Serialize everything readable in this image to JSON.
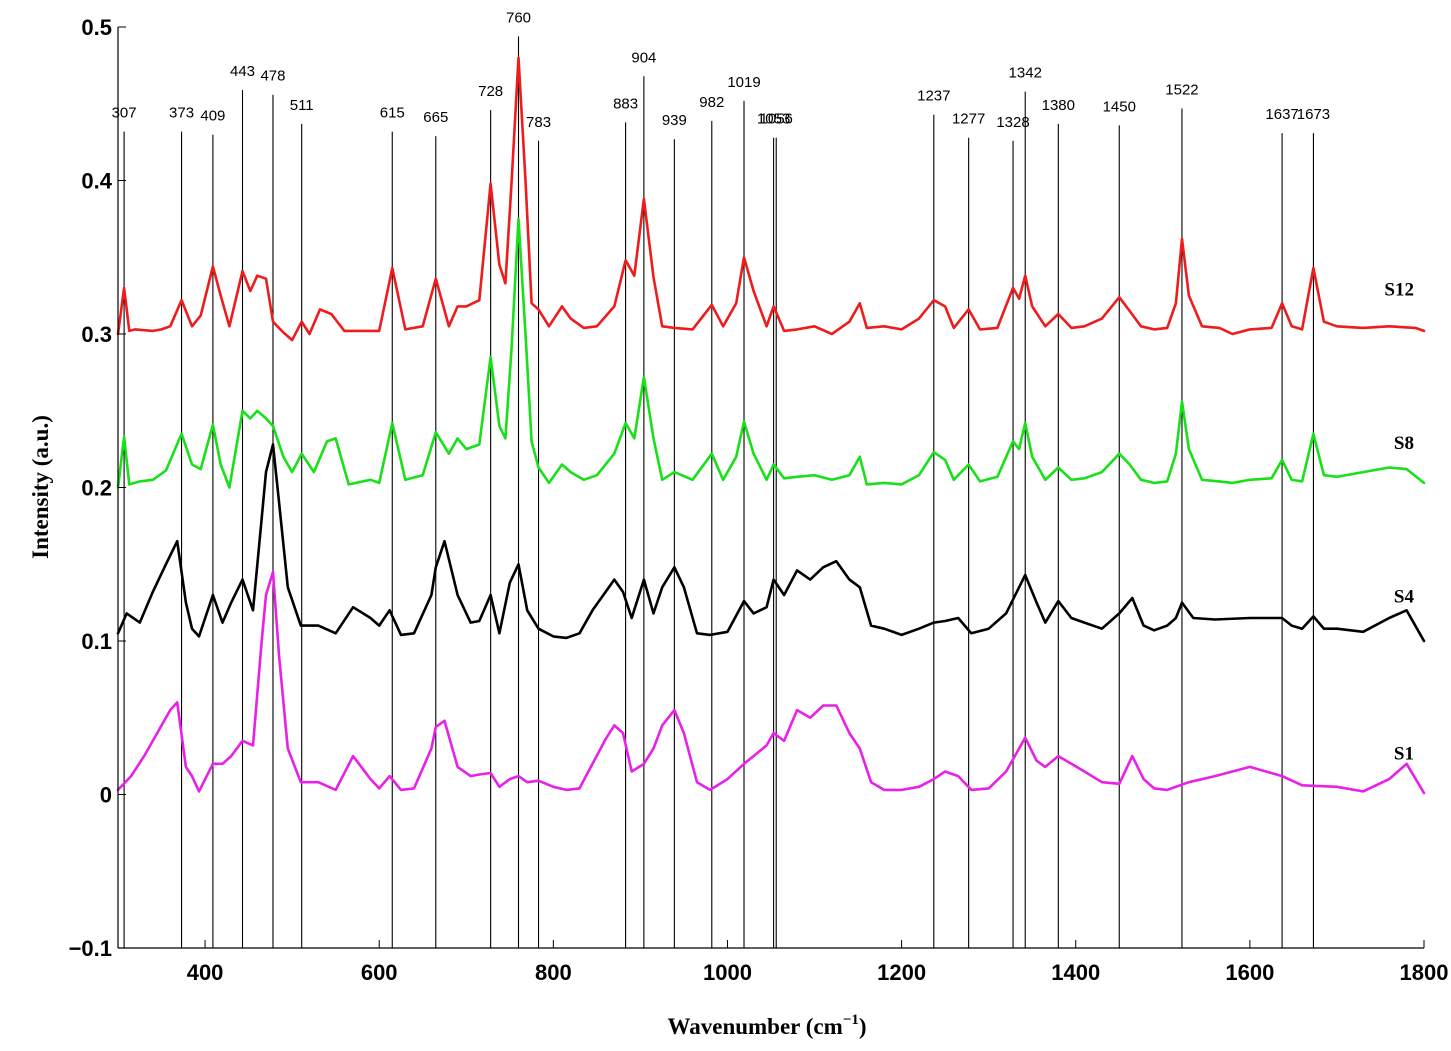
{
  "chart_data": {
    "type": "line",
    "title": "",
    "xlabel_main": "Wavenumber (cm",
    "xlabel_sup": "−1",
    "xlabel_close": ")",
    "ylabel": "Intensity (a.u.)",
    "xlim": [
      300,
      1800
    ],
    "ylim": [
      -0.1,
      0.5
    ],
    "x_ticks": [
      400,
      600,
      800,
      1000,
      1200,
      1400,
      1600,
      1800
    ],
    "x_tick_labels": [
      "400",
      "600",
      "800",
      "1000",
      "1200",
      "1400",
      "1600",
      "1800"
    ],
    "y_ticks": [
      -0.1,
      0,
      0.1,
      0.2,
      0.3,
      0.4,
      0.5
    ],
    "y_tick_labels": [
      "−0.1",
      "0",
      "0.1",
      "0.2",
      "0.3",
      "0.4",
      "0.5"
    ],
    "grid": false,
    "legend": "labels at right end of each series",
    "peak_markers": [
      {
        "x": 307,
        "label": "307",
        "label_y": 0.441
      },
      {
        "x": 373,
        "label": "373",
        "label_y": 0.441
      },
      {
        "x": 409,
        "label": "409",
        "label_y": 0.439
      },
      {
        "x": 443,
        "label": "443",
        "label_y": 0.468
      },
      {
        "x": 478,
        "label": "478",
        "label_y": 0.465
      },
      {
        "x": 511,
        "label": "511",
        "label_y": 0.446
      },
      {
        "x": 615,
        "label": "615",
        "label_y": 0.441
      },
      {
        "x": 665,
        "label": "665",
        "label_y": 0.438
      },
      {
        "x": 728,
        "label": "728",
        "label_y": 0.455
      },
      {
        "x": 760,
        "label": "760",
        "label_y": 0.503
      },
      {
        "x": 783,
        "label": "783",
        "label_y": 0.435
      },
      {
        "x": 883,
        "label": "883",
        "label_y": 0.447
      },
      {
        "x": 904,
        "label": "904",
        "label_y": 0.477
      },
      {
        "x": 939,
        "label": "939",
        "label_y": 0.436
      },
      {
        "x": 982,
        "label": "982",
        "label_y": 0.448
      },
      {
        "x": 1019,
        "label": "1019",
        "label_y": 0.461
      },
      {
        "x": 1053,
        "label": "1053",
        "label_y": 0.437
      },
      {
        "x": 1056,
        "label": "1056",
        "label_y": 0.437
      },
      {
        "x": 1237,
        "label": "1237",
        "label_y": 0.452
      },
      {
        "x": 1277,
        "label": "1277",
        "label_y": 0.437
      },
      {
        "x": 1328,
        "label": "1328",
        "label_y": 0.435
      },
      {
        "x": 1342,
        "label": "1342",
        "label_y": 0.467
      },
      {
        "x": 1380,
        "label": "1380",
        "label_y": 0.446
      },
      {
        "x": 1450,
        "label": "1450",
        "label_y": 0.445
      },
      {
        "x": 1522,
        "label": "1522",
        "label_y": 0.456
      },
      {
        "x": 1637,
        "label": "1637",
        "label_y": 0.44
      },
      {
        "x": 1673,
        "label": "1673",
        "label_y": 0.44
      }
    ],
    "series": [
      {
        "name": "S12",
        "color": "#ee1c1c",
        "x": [
          300,
          307,
          313,
          320,
          340,
          350,
          360,
          373,
          385,
          395,
          409,
          418,
          428,
          443,
          452,
          460,
          470,
          478,
          490,
          500,
          511,
          520,
          532,
          545,
          560,
          600,
          615,
          630,
          650,
          665,
          680,
          690,
          700,
          715,
          728,
          738,
          745,
          752,
          760,
          768,
          775,
          783,
          795,
          810,
          820,
          835,
          850,
          870,
          883,
          893,
          904,
          915,
          925,
          939,
          960,
          982,
          995,
          1010,
          1019,
          1030,
          1045,
          1053,
          1065,
          1080,
          1100,
          1120,
          1140,
          1152,
          1160,
          1180,
          1200,
          1220,
          1237,
          1250,
          1260,
          1277,
          1290,
          1310,
          1328,
          1335,
          1342,
          1350,
          1365,
          1380,
          1395,
          1410,
          1430,
          1450,
          1462,
          1475,
          1490,
          1505,
          1515,
          1522,
          1530,
          1545,
          1565,
          1580,
          1600,
          1625,
          1637,
          1648,
          1660,
          1673,
          1685,
          1700,
          1730,
          1760,
          1790,
          1800
        ],
        "values": [
          0.3,
          0.33,
          0.302,
          0.303,
          0.302,
          0.303,
          0.305,
          0.322,
          0.305,
          0.312,
          0.344,
          0.325,
          0.305,
          0.341,
          0.328,
          0.338,
          0.336,
          0.308,
          0.301,
          0.296,
          0.308,
          0.3,
          0.316,
          0.313,
          0.302,
          0.302,
          0.343,
          0.303,
          0.305,
          0.336,
          0.305,
          0.318,
          0.318,
          0.322,
          0.398,
          0.345,
          0.333,
          0.398,
          0.48,
          0.4,
          0.32,
          0.316,
          0.305,
          0.318,
          0.31,
          0.304,
          0.305,
          0.318,
          0.348,
          0.338,
          0.388,
          0.337,
          0.305,
          0.304,
          0.303,
          0.319,
          0.305,
          0.32,
          0.35,
          0.328,
          0.305,
          0.318,
          0.302,
          0.303,
          0.305,
          0.3,
          0.308,
          0.32,
          0.304,
          0.305,
          0.303,
          0.31,
          0.322,
          0.318,
          0.304,
          0.316,
          0.303,
          0.304,
          0.33,
          0.323,
          0.338,
          0.318,
          0.305,
          0.313,
          0.304,
          0.305,
          0.31,
          0.324,
          0.315,
          0.305,
          0.303,
          0.304,
          0.32,
          0.362,
          0.325,
          0.305,
          0.304,
          0.3,
          0.303,
          0.304,
          0.32,
          0.305,
          0.303,
          0.343,
          0.308,
          0.305,
          0.304,
          0.305,
          0.304,
          0.302
        ]
      },
      {
        "name": "S8",
        "color": "#19e019",
        "x": [
          300,
          307,
          313,
          325,
          340,
          355,
          373,
          385,
          395,
          409,
          418,
          428,
          443,
          452,
          460,
          470,
          478,
          490,
          500,
          511,
          525,
          540,
          550,
          565,
          590,
          600,
          615,
          630,
          650,
          665,
          680,
          690,
          700,
          715,
          728,
          738,
          745,
          752,
          760,
          768,
          775,
          783,
          795,
          810,
          820,
          835,
          850,
          870,
          883,
          893,
          904,
          915,
          925,
          939,
          960,
          982,
          995,
          1010,
          1019,
          1030,
          1045,
          1053,
          1065,
          1080,
          1100,
          1120,
          1140,
          1152,
          1160,
          1180,
          1200,
          1220,
          1237,
          1250,
          1260,
          1277,
          1290,
          1310,
          1328,
          1335,
          1342,
          1350,
          1365,
          1380,
          1395,
          1410,
          1430,
          1450,
          1462,
          1475,
          1490,
          1505,
          1515,
          1522,
          1530,
          1545,
          1565,
          1580,
          1600,
          1625,
          1637,
          1648,
          1660,
          1673,
          1685,
          1700,
          1730,
          1760,
          1780,
          1800
        ],
        "values": [
          0.2,
          0.233,
          0.202,
          0.204,
          0.205,
          0.211,
          0.235,
          0.215,
          0.212,
          0.241,
          0.215,
          0.2,
          0.25,
          0.245,
          0.25,
          0.245,
          0.24,
          0.22,
          0.21,
          0.222,
          0.21,
          0.23,
          0.232,
          0.202,
          0.205,
          0.203,
          0.242,
          0.205,
          0.208,
          0.236,
          0.222,
          0.232,
          0.225,
          0.228,
          0.285,
          0.24,
          0.232,
          0.29,
          0.375,
          0.3,
          0.23,
          0.213,
          0.203,
          0.215,
          0.21,
          0.205,
          0.208,
          0.222,
          0.242,
          0.232,
          0.272,
          0.232,
          0.205,
          0.21,
          0.205,
          0.222,
          0.205,
          0.22,
          0.243,
          0.222,
          0.205,
          0.215,
          0.206,
          0.207,
          0.208,
          0.205,
          0.208,
          0.22,
          0.202,
          0.203,
          0.202,
          0.208,
          0.223,
          0.218,
          0.205,
          0.215,
          0.204,
          0.207,
          0.23,
          0.225,
          0.242,
          0.22,
          0.205,
          0.213,
          0.205,
          0.206,
          0.21,
          0.222,
          0.215,
          0.205,
          0.203,
          0.204,
          0.222,
          0.256,
          0.225,
          0.205,
          0.204,
          0.203,
          0.205,
          0.206,
          0.218,
          0.205,
          0.204,
          0.235,
          0.208,
          0.207,
          0.21,
          0.213,
          0.212,
          0.203
        ]
      },
      {
        "name": "S4",
        "color": "#000000",
        "x": [
          300,
          310,
          325,
          340,
          355,
          368,
          378,
          385,
          393,
          409,
          420,
          430,
          443,
          455,
          465,
          470,
          478,
          485,
          495,
          510,
          530,
          550,
          570,
          590,
          600,
          612,
          625,
          640,
          660,
          665,
          675,
          690,
          705,
          715,
          728,
          738,
          750,
          760,
          770,
          783,
          800,
          815,
          830,
          845,
          860,
          870,
          880,
          890,
          904,
          915,
          925,
          939,
          950,
          965,
          980,
          1000,
          1019,
          1030,
          1045,
          1053,
          1065,
          1080,
          1095,
          1110,
          1125,
          1140,
          1152,
          1165,
          1180,
          1200,
          1220,
          1237,
          1250,
          1265,
          1280,
          1300,
          1320,
          1342,
          1355,
          1365,
          1380,
          1395,
          1410,
          1430,
          1450,
          1465,
          1478,
          1490,
          1505,
          1515,
          1522,
          1535,
          1560,
          1600,
          1637,
          1648,
          1660,
          1673,
          1685,
          1700,
          1730,
          1760,
          1780,
          1800
        ],
        "values": [
          0.105,
          0.118,
          0.112,
          0.132,
          0.15,
          0.165,
          0.125,
          0.108,
          0.103,
          0.13,
          0.112,
          0.125,
          0.14,
          0.12,
          0.18,
          0.21,
          0.228,
          0.19,
          0.135,
          0.11,
          0.11,
          0.105,
          0.122,
          0.115,
          0.11,
          0.12,
          0.104,
          0.105,
          0.13,
          0.148,
          0.165,
          0.13,
          0.112,
          0.113,
          0.13,
          0.105,
          0.138,
          0.15,
          0.12,
          0.108,
          0.103,
          0.102,
          0.105,
          0.12,
          0.132,
          0.14,
          0.132,
          0.115,
          0.14,
          0.118,
          0.135,
          0.148,
          0.135,
          0.105,
          0.104,
          0.106,
          0.126,
          0.118,
          0.122,
          0.14,
          0.13,
          0.146,
          0.14,
          0.148,
          0.152,
          0.14,
          0.135,
          0.11,
          0.108,
          0.104,
          0.108,
          0.112,
          0.113,
          0.115,
          0.105,
          0.108,
          0.118,
          0.143,
          0.125,
          0.112,
          0.126,
          0.115,
          0.112,
          0.108,
          0.118,
          0.128,
          0.11,
          0.107,
          0.11,
          0.115,
          0.125,
          0.115,
          0.114,
          0.115,
          0.115,
          0.11,
          0.108,
          0.116,
          0.108,
          0.108,
          0.106,
          0.115,
          0.12,
          0.1
        ]
      },
      {
        "name": "S1",
        "color": "#e821e8",
        "x": [
          300,
          315,
          330,
          345,
          360,
          368,
          378,
          385,
          393,
          409,
          420,
          430,
          443,
          455,
          465,
          470,
          478,
          485,
          495,
          510,
          530,
          550,
          570,
          590,
          600,
          612,
          625,
          640,
          660,
          665,
          675,
          690,
          705,
          715,
          728,
          738,
          750,
          760,
          770,
          783,
          800,
          815,
          830,
          845,
          860,
          870,
          880,
          890,
          904,
          915,
          925,
          939,
          950,
          965,
          980,
          1000,
          1019,
          1030,
          1045,
          1053,
          1065,
          1080,
          1095,
          1110,
          1125,
          1140,
          1152,
          1165,
          1180,
          1200,
          1220,
          1237,
          1250,
          1265,
          1280,
          1300,
          1320,
          1342,
          1355,
          1365,
          1380,
          1395,
          1410,
          1430,
          1450,
          1465,
          1478,
          1490,
          1505,
          1530,
          1560,
          1600,
          1637,
          1660,
          1700,
          1730,
          1760,
          1780,
          1800
        ],
        "values": [
          0.003,
          0.012,
          0.025,
          0.04,
          0.055,
          0.06,
          0.018,
          0.012,
          0.002,
          0.02,
          0.02,
          0.025,
          0.035,
          0.032,
          0.1,
          0.13,
          0.145,
          0.09,
          0.03,
          0.008,
          0.008,
          0.003,
          0.025,
          0.01,
          0.004,
          0.012,
          0.003,
          0.004,
          0.03,
          0.044,
          0.048,
          0.018,
          0.012,
          0.013,
          0.014,
          0.005,
          0.01,
          0.012,
          0.008,
          0.009,
          0.005,
          0.003,
          0.004,
          0.02,
          0.036,
          0.045,
          0.04,
          0.015,
          0.02,
          0.03,
          0.045,
          0.055,
          0.04,
          0.008,
          0.003,
          0.01,
          0.02,
          0.025,
          0.032,
          0.04,
          0.035,
          0.055,
          0.05,
          0.058,
          0.058,
          0.04,
          0.03,
          0.008,
          0.003,
          0.003,
          0.005,
          0.01,
          0.015,
          0.012,
          0.003,
          0.004,
          0.015,
          0.037,
          0.022,
          0.018,
          0.025,
          0.02,
          0.015,
          0.008,
          0.007,
          0.025,
          0.01,
          0.004,
          0.003,
          0.008,
          0.012,
          0.018,
          0.012,
          0.006,
          0.005,
          0.002,
          0.01,
          0.02,
          0.001
        ]
      }
    ]
  }
}
